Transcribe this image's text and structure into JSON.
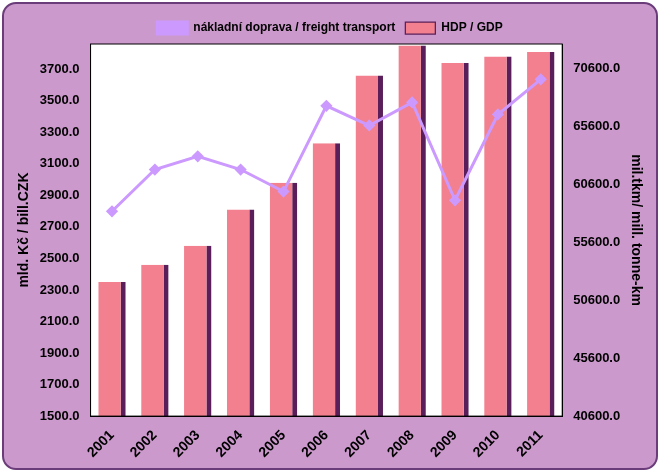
{
  "chart_data": {
    "type": "bar",
    "categories": [
      "2001",
      "2002",
      "2003",
      "2004",
      "2005",
      "2006",
      "2007",
      "2008",
      "2009",
      "2010",
      "2011"
    ],
    "series": [
      {
        "name": "HDP / GDP",
        "type": "bar",
        "color": "#f2808f",
        "axis": "y",
        "values": [
          2350,
          2460,
          2580,
          2810,
          2980,
          3230,
          3660,
          3850,
          3740,
          3780,
          3810
        ]
      },
      {
        "name": "nákladní doprava / freight transport",
        "type": "line",
        "color": "#cc99ff",
        "axis": "y2",
        "marker": "diamond",
        "values": [
          58270,
          61870,
          63010,
          61870,
          59970,
          67370,
          65670,
          67660,
          59220,
          66620,
          69650
        ]
      }
    ],
    "y_label": "mld. Kč / bill.CZK",
    "y2_label": "mil.tkm/ mill. tonne-km",
    "ylim": [
      1500,
      3860
    ],
    "yticks": [
      {
        "value": 1500,
        "label": "1500.0"
      },
      {
        "value": 1700,
        "label": "1700.0"
      },
      {
        "value": 1900,
        "label": "1900.0"
      },
      {
        "value": 2100,
        "label": "2100.0"
      },
      {
        "value": 2300,
        "label": "2300.0"
      },
      {
        "value": 2500,
        "label": "2500.0"
      },
      {
        "value": 2700,
        "label": "2700.0"
      },
      {
        "value": 2900,
        "label": "2900.0"
      },
      {
        "value": 3100,
        "label": "3100.0"
      },
      {
        "value": 3300,
        "label": "3300.0"
      },
      {
        "value": 3500,
        "label": "3500.0"
      },
      {
        "value": 3700,
        "label": "3700.0"
      }
    ],
    "y2lim": [
      40600,
      72700
    ],
    "y2ticks": [
      {
        "value": 40600,
        "label": "40600.0"
      },
      {
        "value": 45600,
        "label": "45600.0"
      },
      {
        "value": 50600,
        "label": "50600.0"
      },
      {
        "value": 55600,
        "label": "55600.0"
      },
      {
        "value": 60600,
        "label": "60600.0"
      },
      {
        "value": 65600,
        "label": "65600.0"
      },
      {
        "value": 70600,
        "label": "70600.0"
      }
    ],
    "grid": false,
    "legend": "top"
  }
}
